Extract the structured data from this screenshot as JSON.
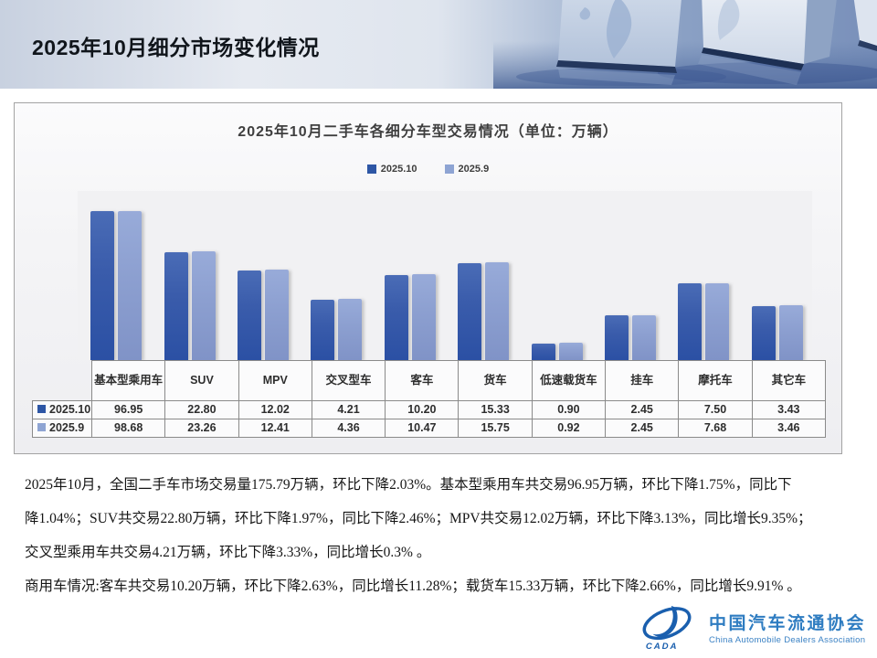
{
  "page": {
    "title": "2025年10月细分市场变化情况"
  },
  "banner": {
    "graphic": "blue-3d-cubes-world-map"
  },
  "chart": {
    "title": "2025年10月二手车各细分车型交易情况（单位：万辆）",
    "legend": [
      {
        "label": "2025.10",
        "color": "#2d56a5"
      },
      {
        "label": "2025.9",
        "color": "#8ea4d3"
      }
    ]
  },
  "chart_data": {
    "type": "bar",
    "title": "2025年10月二手车各细分车型交易情况（单位：万辆）",
    "unit": "万辆",
    "categories": [
      "基本型乘用车",
      "SUV",
      "MPV",
      "交叉型车",
      "客车",
      "货车",
      "低速载货车",
      "挂车",
      "摩托车",
      "其它车"
    ],
    "series": [
      {
        "name": "2025.10",
        "color": "#2d56a5",
        "values": [
          96.95,
          22.8,
          12.02,
          4.21,
          10.2,
          15.33,
          0.9,
          2.45,
          7.5,
          3.43
        ]
      },
      {
        "name": "2025.9",
        "color": "#8ea4d3",
        "values": [
          98.68,
          23.26,
          12.41,
          4.36,
          10.47,
          15.75,
          0.92,
          2.45,
          7.68,
          3.46
        ]
      }
    ],
    "y_axis": {
      "visible": false,
      "scale": "log",
      "min": 0.5,
      "max": 200
    },
    "legend_position": "top",
    "grid": false,
    "data_table_shown": true
  },
  "table": {
    "headers": [
      "基本型乘用车",
      "SUV",
      "MPV",
      "交叉型车",
      "客车",
      "货车",
      "低速载货车",
      "挂车",
      "摩托车",
      "其它车"
    ],
    "rows": [
      {
        "label": "2025.10",
        "marker_color": "#2d56a5",
        "values": [
          "96.95",
          "22.80",
          "12.02",
          "4.21",
          "10.20",
          "15.33",
          "0.90",
          "2.45",
          "7.50",
          "3.43"
        ]
      },
      {
        "label": "2025.9",
        "marker_color": "#8ea4d3",
        "values": [
          "98.68",
          "23.26",
          "12.41",
          "4.36",
          "10.47",
          "15.75",
          "0.92",
          "2.45",
          "7.68",
          "3.46"
        ]
      }
    ]
  },
  "body_text": {
    "lines": [
      "2025年10月，全国二手车市场交易量175.79万辆，环比下降2.03%。基本型乘用车共交易96.95万辆，环比下降1.75%，同比下",
      "降1.04%；SUV共交易22.80万辆，环比下降1.97%，同比下降2.46%；MPV共交易12.02万辆，环比下降3.13%，同比增长9.35%；",
      "交叉型乘用车共交易4.21万辆，环比下降3.33%，同比增长0.3% 。",
      "商用车情况:客车共交易10.20万辆，环比下降2.63%，同比增长11.28%；载货车15.33万辆，环比下降2.66%，同比增长9.91% 。"
    ]
  },
  "logo": {
    "acronym": "CADA",
    "name_cn": "中国汽车流通协会",
    "name_en": "China Automobile Dealers Association",
    "color": "#2e7cc1"
  }
}
